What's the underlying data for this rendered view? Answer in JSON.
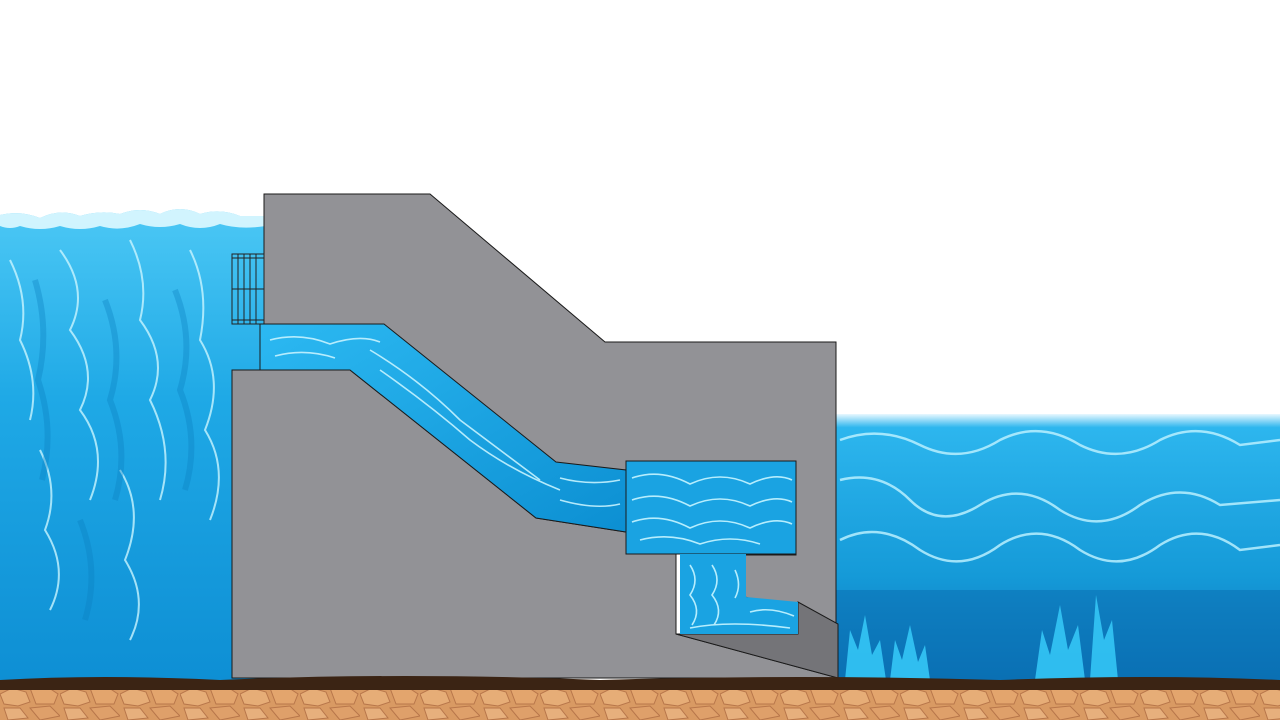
{
  "colors": {
    "sky": "#ffffff",
    "reservoir_water": "#1fa9e6",
    "reservoir_water_dark": "#0b86c6",
    "water_highlight": "#bff2ff",
    "tailwater": "#1aa0dd",
    "tailwater_deep": "#0b6fb0",
    "dam_concrete": "#929296",
    "dam_concrete_dark": "#747478",
    "dam_outline": "#1a1a1a",
    "intake_water": "#11a7e8",
    "trash_rack": "#d9d9d9",
    "soil": "#3b2414",
    "bedrock": "#d99a63",
    "bedrock_line": "#b8764a"
  },
  "components": [
    "reservoir",
    "trash-rack",
    "dam",
    "penstock",
    "turbine-chamber",
    "draft-tube",
    "tailrace",
    "bedrock"
  ]
}
